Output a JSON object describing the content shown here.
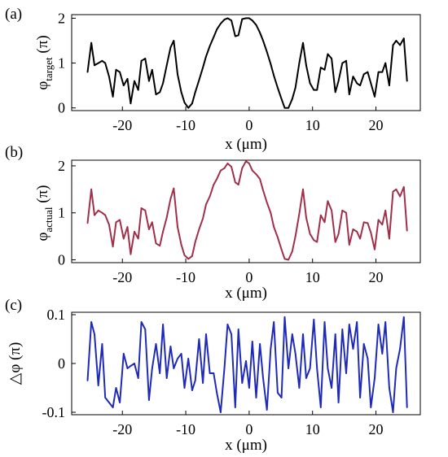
{
  "chart_data": [
    {
      "panel_label": "(a)",
      "type": "line",
      "xlabel": "x (μm)",
      "ylabel_main": "φ",
      "ylabel_sub": "target",
      "ylabel_tail": " (π)",
      "xlim": [
        -28,
        27
      ],
      "ylim": [
        -0.06,
        2.08
      ],
      "x_ticks": [
        -20,
        -10,
        0,
        10,
        20
      ],
      "x_tick_labels": [
        "-20",
        "-10",
        "0",
        "10",
        "20"
      ],
      "y_ticks": [
        0,
        1,
        2
      ],
      "y_tick_labels": [
        "0",
        "1",
        "2"
      ],
      "grid": false,
      "color": "#000000",
      "series": [
        {
          "x": [
            -25.5,
            -24.9,
            -24.4,
            -23.8,
            -23.2,
            -22.7,
            -22.1,
            -21.5,
            -21.0,
            -20.4,
            -19.8,
            -19.2,
            -18.7,
            -18.1,
            -17.5,
            -17.0,
            -16.4,
            -15.8,
            -15.3,
            -14.7,
            -14.1,
            -13.6,
            -13.0,
            -12.4,
            -11.9,
            -11.3,
            -10.7,
            -10.2,
            -9.6,
            -9.0,
            -8.5,
            -7.9,
            -7.3,
            -6.8,
            -6.2,
            -5.6,
            -5.1,
            -4.5,
            -3.9,
            -3.4,
            -2.8,
            -2.2,
            -1.7,
            -1.1,
            -0.5,
            0.0,
            0.5,
            1.1,
            1.7,
            2.2,
            2.8,
            3.4,
            3.9,
            4.5,
            5.1,
            5.6,
            6.2,
            6.8,
            7.3,
            7.9,
            8.5,
            9.0,
            9.6,
            10.2,
            10.7,
            11.3,
            11.9,
            12.4,
            13.0,
            13.6,
            14.1,
            14.7,
            15.3,
            15.8,
            16.4,
            17.0,
            17.5,
            18.1,
            18.7,
            19.2,
            19.8,
            20.4,
            21.0,
            21.5,
            22.1,
            22.7,
            23.2,
            23.8,
            24.4,
            24.9
          ],
          "y": [
            0.8,
            1.45,
            0.95,
            1.0,
            1.05,
            1.0,
            0.7,
            0.25,
            0.85,
            0.8,
            0.5,
            0.65,
            0.1,
            0.6,
            0.4,
            1.05,
            1.1,
            0.6,
            0.85,
            0.3,
            0.35,
            0.55,
            0.95,
            1.35,
            1.5,
            0.75,
            0.35,
            0.12,
            0.0,
            0.1,
            0.35,
            0.62,
            0.9,
            1.15,
            1.38,
            1.58,
            1.75,
            1.88,
            1.97,
            2.0,
            1.95,
            1.6,
            1.62,
            1.98,
            2.0,
            2.0,
            1.95,
            1.85,
            1.68,
            1.5,
            1.25,
            0.98,
            0.72,
            0.45,
            0.2,
            0.0,
            0.0,
            0.2,
            0.45,
            1.0,
            1.45,
            0.95,
            0.55,
            0.4,
            0.4,
            0.9,
            0.85,
            1.2,
            1.1,
            0.35,
            0.6,
            1.0,
            1.05,
            0.3,
            0.7,
            0.55,
            0.5,
            0.75,
            0.8,
            0.55,
            0.25,
            0.8,
            0.8,
            1.0,
            0.5,
            1.4,
            1.5,
            1.4,
            1.55,
            0.6
          ]
        }
      ]
    },
    {
      "panel_label": "(b)",
      "type": "line",
      "xlabel": "x (μm)",
      "ylabel_main": "φ",
      "ylabel_sub": "actual",
      "ylabel_tail": " (π)",
      "xlim": [
        -28,
        27
      ],
      "ylim": [
        -0.06,
        2.12
      ],
      "x_ticks": [
        -20,
        -10,
        0,
        10,
        20
      ],
      "x_tick_labels": [
        "-20",
        "-10",
        "0",
        "10",
        "20"
      ],
      "y_ticks": [
        0,
        1,
        2
      ],
      "y_tick_labels": [
        "0",
        "1",
        "2"
      ],
      "grid": false,
      "color": "#a0304a",
      "series": [
        {
          "x": [
            -25.5,
            -24.9,
            -24.4,
            -23.8,
            -23.2,
            -22.7,
            -22.1,
            -21.5,
            -21.0,
            -20.4,
            -19.8,
            -19.2,
            -18.7,
            -18.1,
            -17.5,
            -17.0,
            -16.4,
            -15.8,
            -15.3,
            -14.7,
            -14.1,
            -13.6,
            -13.0,
            -12.4,
            -11.9,
            -11.3,
            -10.7,
            -10.2,
            -9.6,
            -9.0,
            -8.5,
            -7.9,
            -7.3,
            -6.8,
            -6.2,
            -5.6,
            -5.1,
            -4.5,
            -3.9,
            -3.4,
            -2.8,
            -2.2,
            -1.7,
            -1.1,
            -0.5,
            0.0,
            0.5,
            1.1,
            1.7,
            2.2,
            2.8,
            3.4,
            3.9,
            4.5,
            5.1,
            5.6,
            6.2,
            6.8,
            7.3,
            7.9,
            8.5,
            9.0,
            9.6,
            10.2,
            10.7,
            11.3,
            11.9,
            12.4,
            13.0,
            13.6,
            14.1,
            14.7,
            15.3,
            15.8,
            16.4,
            17.0,
            17.5,
            18.1,
            18.7,
            19.2,
            19.8,
            20.4,
            21.0,
            21.5,
            22.1,
            22.7,
            23.2,
            23.8,
            24.4,
            24.9
          ],
          "y": [
            0.78,
            1.5,
            0.95,
            1.05,
            1.0,
            0.95,
            0.75,
            0.28,
            0.8,
            0.85,
            0.45,
            0.7,
            0.12,
            0.6,
            0.45,
            1.1,
            1.05,
            0.65,
            0.8,
            0.35,
            0.3,
            0.6,
            0.9,
            1.3,
            1.52,
            0.7,
            0.32,
            0.1,
            0.02,
            0.08,
            0.38,
            0.65,
            0.88,
            1.18,
            1.35,
            1.6,
            1.72,
            1.9,
            1.95,
            2.05,
            1.98,
            1.65,
            1.6,
            1.95,
            2.1,
            2.05,
            1.9,
            1.82,
            1.72,
            1.48,
            1.22,
            1.0,
            0.7,
            0.48,
            0.22,
            0.02,
            0.0,
            0.18,
            0.5,
            0.98,
            1.5,
            0.9,
            0.55,
            0.42,
            0.38,
            0.95,
            0.8,
            1.25,
            1.05,
            0.38,
            0.55,
            1.05,
            1.0,
            0.32,
            0.65,
            0.6,
            0.45,
            0.8,
            0.78,
            0.58,
            0.22,
            0.85,
            0.75,
            1.05,
            0.45,
            1.45,
            1.5,
            1.35,
            1.55,
            0.62
          ]
        }
      ]
    },
    {
      "panel_label": "(c)",
      "type": "line",
      "xlabel": "x (μm)",
      "ylabel_main": "△φ (π)",
      "ylabel_sub": "",
      "ylabel_tail": "",
      "xlim": [
        -28,
        27
      ],
      "ylim": [
        -0.105,
        0.105
      ],
      "x_ticks": [
        -20,
        -10,
        0,
        10,
        20
      ],
      "x_tick_labels": [
        "-20",
        "-10",
        "0",
        "10",
        "20"
      ],
      "y_ticks": [
        -0.1,
        0,
        0.1
      ],
      "y_tick_labels": [
        "-0.1",
        "0",
        "0.1"
      ],
      "grid": false,
      "color": "#1f2bb8",
      "series": [
        {
          "x": [
            -25.5,
            -24.9,
            -24.4,
            -23.8,
            -23.2,
            -22.7,
            -22.1,
            -21.5,
            -21.0,
            -20.4,
            -19.8,
            -19.2,
            -18.7,
            -18.1,
            -17.5,
            -17.0,
            -16.4,
            -15.8,
            -15.3,
            -14.7,
            -14.1,
            -13.6,
            -13.0,
            -12.4,
            -11.9,
            -11.3,
            -10.7,
            -10.2,
            -9.6,
            -9.0,
            -8.5,
            -7.9,
            -7.3,
            -6.8,
            -6.2,
            -5.6,
            -5.1,
            -4.5,
            -3.9,
            -3.4,
            -2.8,
            -2.2,
            -1.7,
            -1.1,
            -0.5,
            0.0,
            0.5,
            1.1,
            1.7,
            2.2,
            2.8,
            3.4,
            3.9,
            4.5,
            5.1,
            5.6,
            6.2,
            6.8,
            7.3,
            7.9,
            8.5,
            9.0,
            9.6,
            10.2,
            10.7,
            11.3,
            11.9,
            12.4,
            13.0,
            13.6,
            14.1,
            14.7,
            15.3,
            15.8,
            16.4,
            17.0,
            17.5,
            18.1,
            18.7,
            19.2,
            19.8,
            20.4,
            21.0,
            21.5,
            22.1,
            22.7,
            23.2,
            23.8,
            24.4,
            24.9
          ],
          "y": [
            -0.035,
            0.085,
            0.06,
            -0.045,
            0.04,
            -0.07,
            -0.08,
            -0.09,
            -0.05,
            -0.08,
            0.02,
            -0.01,
            -0.005,
            0.0,
            -0.03,
            0.085,
            0.07,
            -0.075,
            -0.01,
            0.04,
            -0.02,
            0.08,
            -0.03,
            0.035,
            -0.01,
            0.01,
            0.02,
            -0.05,
            0.01,
            -0.055,
            -0.035,
            0.05,
            -0.04,
            0.06,
            -0.02,
            -0.02,
            -0.06,
            -0.1,
            -0.01,
            0.08,
            0.06,
            -0.09,
            0.07,
            -0.04,
            0.005,
            -0.05,
            0.045,
            -0.07,
            0.04,
            -0.03,
            -0.095,
            0.03,
            0.085,
            -0.06,
            -0.07,
            0.095,
            -0.01,
            0.06,
            0.02,
            -0.05,
            0.06,
            -0.03,
            -0.01,
            0.09,
            -0.01,
            -0.09,
            0.085,
            -0.01,
            -0.05,
            0.06,
            -0.08,
            0.07,
            -0.02,
            0.08,
            0.03,
            0.085,
            -0.07,
            0.04,
            0.01,
            -0.09,
            -0.03,
            0.08,
            0.02,
            0.085,
            -0.05,
            -0.1,
            -0.01,
            0.03,
            0.095,
            -0.09
          ]
        }
      ]
    }
  ]
}
